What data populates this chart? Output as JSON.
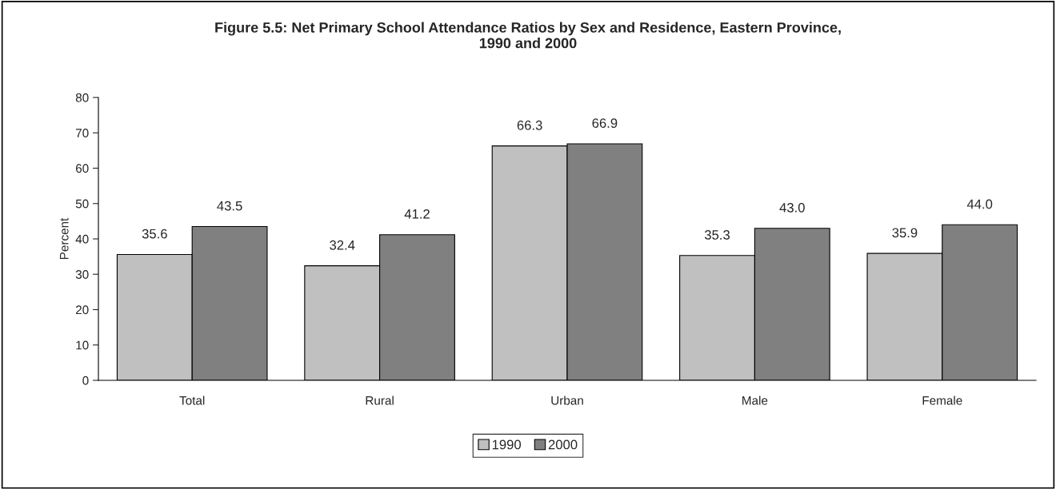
{
  "chart_data": {
    "type": "bar",
    "title": "Figure 5.5: Net Primary School Attendance Ratios by Sex and Residence, Eastern Province,\n1990 and 2000",
    "ylabel": "Percent",
    "categories": [
      "Total",
      "Rural",
      "Urban",
      "Male",
      "Female"
    ],
    "series": [
      {
        "name": "1990",
        "color": "#c0c0c0",
        "values": [
          35.6,
          32.4,
          66.3,
          35.3,
          35.9
        ],
        "value_labels": [
          "35.6",
          "32.4",
          "66.3",
          "35.3",
          "35.9"
        ]
      },
      {
        "name": "2000",
        "color": "#808080",
        "values": [
          43.5,
          41.2,
          66.9,
          43.0,
          44.0
        ],
        "value_labels": [
          "43.5",
          "41.2",
          "66.9",
          "43.0",
          "44.0"
        ]
      }
    ],
    "ylim": [
      0,
      80
    ],
    "yticks": [
      0,
      10,
      20,
      30,
      40,
      50,
      60,
      70,
      80
    ],
    "grid": false,
    "legend": "bottom"
  }
}
